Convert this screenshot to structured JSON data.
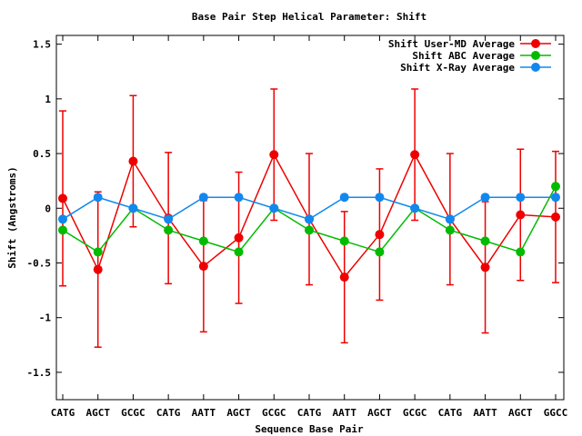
{
  "chart_data": {
    "type": "line",
    "title": "Base Pair Step Helical Parameter: Shift",
    "xlabel": "Sequence Base Pair",
    "ylabel": "Shift (Angstroms)",
    "ylim": [
      -1.75,
      1.58
    ],
    "yticks": [
      -1.5,
      -1,
      -0.5,
      0,
      0.5,
      1,
      1.5
    ],
    "ytick_labels": [
      "-1.5",
      "-1",
      "-0.5",
      "0",
      "0.5",
      "1",
      "1.5"
    ],
    "categories": [
      "CATG",
      "AGCT",
      "GCGC",
      "CATG",
      "AATT",
      "AGCT",
      "GCGC",
      "CATG",
      "AATT",
      "AGCT",
      "GCGC",
      "CATG",
      "AATT",
      "AGCT",
      "GGCC"
    ],
    "legend_position": "top-right",
    "grid": false,
    "series": [
      {
        "name": "Shift User-MD Average",
        "color": "#ee0000",
        "values": [
          0.09,
          -0.56,
          0.43,
          -0.09,
          -0.53,
          -0.27,
          0.49,
          -0.1,
          -0.63,
          -0.24,
          0.49,
          -0.1,
          -0.54,
          -0.06,
          -0.08
        ],
        "error": [
          0.8,
          0.71,
          0.6,
          0.6,
          0.6,
          0.6,
          0.6,
          0.6,
          0.6,
          0.6,
          0.6,
          0.6,
          0.6,
          0.6,
          0.6
        ]
      },
      {
        "name": "Shift ABC Average",
        "color": "#00bb00",
        "values": [
          -0.2,
          -0.4,
          0.0,
          -0.2,
          -0.3,
          -0.4,
          0.0,
          -0.2,
          -0.3,
          -0.4,
          0.0,
          -0.2,
          -0.3,
          -0.4,
          0.2
        ]
      },
      {
        "name": "Shift X-Ray Average",
        "color": "#1188ee",
        "values": [
          -0.1,
          0.1,
          0.0,
          -0.1,
          0.1,
          0.1,
          0.0,
          -0.1,
          0.1,
          0.1,
          0.0,
          -0.1,
          0.1,
          0.1,
          0.1
        ]
      }
    ]
  }
}
